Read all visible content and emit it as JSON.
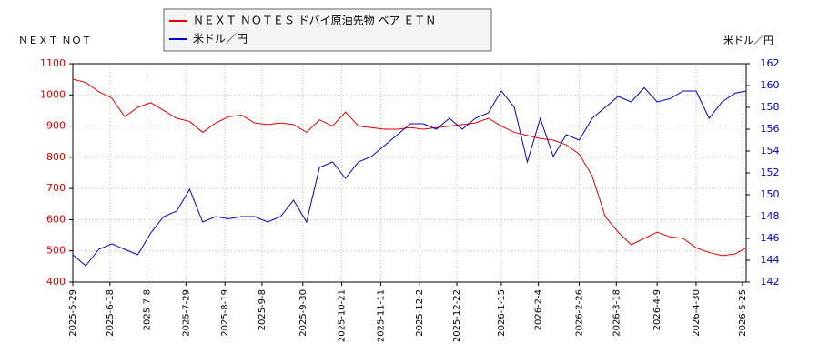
{
  "chart_data": {
    "type": "line",
    "ylabel": "ＮＥＸＴ ＮＯＴ",
    "y2label": "米ドル／円",
    "x": [
      "2025-5-29",
      "2025-6-5",
      "2025-6-12",
      "2025-6-19",
      "2025-6-26",
      "2025-7-3",
      "2025-7-10",
      "2025-7-17",
      "2025-7-24",
      "2025-7-31",
      "2025-8-7",
      "2025-8-14",
      "2025-8-21",
      "2025-8-28",
      "2025-9-4",
      "2025-9-11",
      "2025-9-18",
      "2025-9-25",
      "2025-10-2",
      "2025-10-9",
      "2025-10-16",
      "2025-10-23",
      "2025-10-30",
      "2025-11-6",
      "2025-11-13",
      "2025-11-20",
      "2025-11-27",
      "2025-12-4",
      "2025-12-11",
      "2025-12-18",
      "2025-12-25",
      "2026-1-1",
      "2026-1-8",
      "2026-1-15",
      "2026-1-22",
      "2026-1-29",
      "2026-2-5",
      "2026-2-12",
      "2026-2-19",
      "2026-2-26",
      "2026-3-5",
      "2026-3-12",
      "2026-3-19",
      "2026-3-26",
      "2026-4-2",
      "2026-4-9",
      "2026-4-16",
      "2026-4-23",
      "2026-4-30",
      "2026-5-7",
      "2026-5-14",
      "2026-5-21",
      "2026-5-27"
    ],
    "xlim": [
      "2025-5-29",
      "2026-5-27"
    ],
    "xticks": [
      "2025-5-29",
      "2025-6-18",
      "2025-7-8",
      "2025-7-29",
      "2025-8-19",
      "2025-9-8",
      "2025-9-30",
      "2025-10-21",
      "2025-11-11",
      "2025-12-2",
      "2025-12-22",
      "2026-1-15",
      "2026-2-4",
      "2026-2-26",
      "2026-3-18",
      "2026-4-9",
      "2026-4-30",
      "2026-5-25"
    ],
    "ylim": [
      400,
      1100
    ],
    "yticks": [
      400,
      500,
      600,
      700,
      800,
      900,
      1000,
      1100
    ],
    "y2lim": [
      142,
      162
    ],
    "y2ticks": [
      142,
      144,
      146,
      148,
      150,
      152,
      154,
      156,
      158,
      160,
      162
    ],
    "grid": true,
    "series": [
      {
        "name": "ＮＥＸＴ ＮＯＴＥＳ ドバイ原油先物 ベア ＥＴＮ",
        "color": "#e00000",
        "values": [
          1050,
          1040,
          1010,
          990,
          930,
          960,
          975,
          950,
          925,
          915,
          880,
          910,
          930,
          935,
          910,
          905,
          910,
          905,
          880,
          920,
          900,
          945,
          900,
          895,
          890,
          890,
          895,
          890,
          895,
          900,
          905,
          910,
          925,
          900,
          880,
          870,
          860,
          855,
          840,
          810,
          740,
          610,
          560,
          520,
          540,
          560,
          545,
          540,
          510,
          495,
          485,
          490,
          510
        ]
      },
      {
        "name": "米ドル／円",
        "color": "#0000cc",
        "axis": "y2",
        "values": [
          144.5,
          143.5,
          145,
          145.5,
          145,
          144.5,
          146.5,
          148,
          148.5,
          150.5,
          147.5,
          148,
          147.8,
          148,
          148,
          147.5,
          148,
          149.5,
          147.5,
          152.5,
          153,
          151.5,
          153,
          153.5,
          154.5,
          155.5,
          156.5,
          156.5,
          156,
          157,
          156,
          157,
          157.5,
          159.5,
          158,
          153,
          157,
          153.5,
          155.5,
          155,
          157,
          158,
          159,
          158.5,
          159.8,
          158.5,
          158.8,
          159.5,
          159.5,
          157,
          158.5,
          159.3,
          159.5
        ]
      }
    ]
  }
}
